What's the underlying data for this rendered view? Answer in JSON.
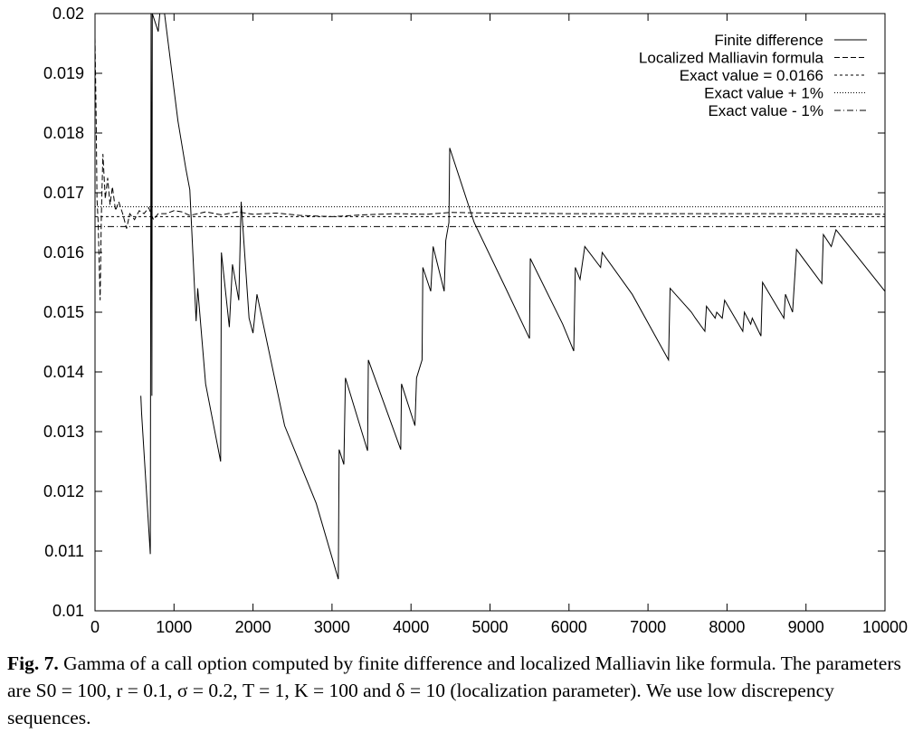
{
  "chart_data": {
    "type": "line",
    "xlim": [
      0,
      10000
    ],
    "ylim": [
      0.01,
      0.02
    ],
    "x_ticks": [
      "0",
      "1000",
      "2000",
      "3000",
      "4000",
      "5000",
      "6000",
      "7000",
      "8000",
      "9000",
      "10000"
    ],
    "y_ticks": [
      "0.01",
      "0.011",
      "0.012",
      "0.013",
      "0.014",
      "0.015",
      "0.016",
      "0.017",
      "0.018",
      "0.019",
      "0.02"
    ],
    "legend_position": "top-right",
    "series": [
      {
        "name": "Finite difference",
        "style": "solid",
        "points": [
          [
            580,
            0.0136
          ],
          [
            590,
            0.0133
          ],
          [
            700,
            0.01095
          ],
          [
            710,
            0.02
          ],
          [
            720,
            0.0136
          ],
          [
            725,
            0.02
          ],
          [
            800,
            0.0197
          ],
          [
            820,
            0.02
          ],
          [
            880,
            0.02
          ],
          [
            1050,
            0.0182
          ],
          [
            1150,
            0.0174
          ],
          [
            1200,
            0.01705
          ],
          [
            1280,
            0.01485
          ],
          [
            1300,
            0.0154
          ],
          [
            1400,
            0.0138
          ],
          [
            1590,
            0.0125
          ],
          [
            1600,
            0.016
          ],
          [
            1700,
            0.01475
          ],
          [
            1740,
            0.0158
          ],
          [
            1820,
            0.0152
          ],
          [
            1850,
            0.01685
          ],
          [
            1950,
            0.0149
          ],
          [
            2000,
            0.01465
          ],
          [
            2050,
            0.0153
          ],
          [
            2400,
            0.0131
          ],
          [
            2800,
            0.0118
          ],
          [
            3080,
            0.01053
          ],
          [
            3090,
            0.0127
          ],
          [
            3150,
            0.01245
          ],
          [
            3170,
            0.0139
          ],
          [
            3450,
            0.01268
          ],
          [
            3460,
            0.0142
          ],
          [
            3870,
            0.0127
          ],
          [
            3880,
            0.0138
          ],
          [
            4050,
            0.0131
          ],
          [
            4070,
            0.0139
          ],
          [
            4140,
            0.0142
          ],
          [
            4150,
            0.01575
          ],
          [
            4250,
            0.01535
          ],
          [
            4280,
            0.0161
          ],
          [
            4420,
            0.01535
          ],
          [
            4440,
            0.0162
          ],
          [
            4480,
            0.0165
          ],
          [
            4490,
            0.01775
          ],
          [
            4800,
            0.0165
          ],
          [
            5200,
            0.0154
          ],
          [
            5500,
            0.01456
          ],
          [
            5510,
            0.0159
          ],
          [
            5920,
            0.0148
          ],
          [
            6060,
            0.01435
          ],
          [
            6080,
            0.01575
          ],
          [
            6140,
            0.01555
          ],
          [
            6200,
            0.0161
          ],
          [
            6400,
            0.01575
          ],
          [
            6420,
            0.016
          ],
          [
            6800,
            0.0153
          ],
          [
            7260,
            0.0142
          ],
          [
            7280,
            0.0154
          ],
          [
            7550,
            0.015
          ],
          [
            7600,
            0.0149
          ],
          [
            7720,
            0.01468
          ],
          [
            7740,
            0.0151
          ],
          [
            7850,
            0.0149
          ],
          [
            7870,
            0.015
          ],
          [
            7940,
            0.0149
          ],
          [
            7970,
            0.0152
          ],
          [
            8200,
            0.01468
          ],
          [
            8220,
            0.015
          ],
          [
            8300,
            0.0148
          ],
          [
            8320,
            0.0149
          ],
          [
            8430,
            0.0146
          ],
          [
            8450,
            0.0155
          ],
          [
            8720,
            0.0149
          ],
          [
            8740,
            0.0153
          ],
          [
            8830,
            0.015
          ],
          [
            8880,
            0.01605
          ],
          [
            9200,
            0.01548
          ],
          [
            9220,
            0.0163
          ],
          [
            9320,
            0.0161
          ],
          [
            9380,
            0.01638
          ],
          [
            10000,
            0.01535
          ]
        ]
      },
      {
        "name": "Localized Malliavin formula",
        "style": "dashed",
        "points": [
          [
            0,
            0.0196
          ],
          [
            15,
            0.0182
          ],
          [
            25,
            0.0169
          ],
          [
            40,
            0.0165
          ],
          [
            55,
            0.0157
          ],
          [
            65,
            0.0152
          ],
          [
            80,
            0.0166
          ],
          [
            100,
            0.01765
          ],
          [
            130,
            0.0169
          ],
          [
            160,
            0.01725
          ],
          [
            190,
            0.0168
          ],
          [
            220,
            0.0171
          ],
          [
            260,
            0.0167
          ],
          [
            300,
            0.01685
          ],
          [
            350,
            0.01665
          ],
          [
            400,
            0.0164
          ],
          [
            440,
            0.01665
          ],
          [
            500,
            0.01655
          ],
          [
            560,
            0.0167
          ],
          [
            620,
            0.01665
          ],
          [
            680,
            0.01675
          ],
          [
            740,
            0.01655
          ],
          [
            800,
            0.01665
          ],
          [
            900,
            0.01665
          ],
          [
            1000,
            0.0167
          ],
          [
            1100,
            0.01668
          ],
          [
            1200,
            0.01662
          ],
          [
            1400,
            0.01668
          ],
          [
            1600,
            0.01663
          ],
          [
            1800,
            0.01668
          ],
          [
            2000,
            0.01664
          ],
          [
            2300,
            0.01666
          ],
          [
            2600,
            0.01662
          ],
          [
            3000,
            0.0166
          ],
          [
            3400,
            0.01663
          ],
          [
            3800,
            0.01665
          ],
          [
            4200,
            0.01664
          ],
          [
            4500,
            0.01667
          ],
          [
            5000,
            0.01666
          ],
          [
            6000,
            0.01665
          ],
          [
            7000,
            0.01665
          ],
          [
            8000,
            0.01665
          ],
          [
            9000,
            0.01665
          ],
          [
            10000,
            0.01664
          ]
        ]
      },
      {
        "name": "Exact value = 0.0166",
        "style": "short-dashed",
        "value": 0.0166
      },
      {
        "name": "Exact value + 1%",
        "style": "dotted",
        "value": 0.016766
      },
      {
        "name": "Exact value - 1%",
        "style": "dash-dot",
        "value": 0.016434
      }
    ]
  },
  "caption": {
    "label": "Fig. 7.",
    "text": " Gamma of a call option computed by finite difference and localized Malliavin like formula. The parameters are S0 = 100, r = 0.1, σ = 0.2, T = 1, K = 100 and δ = 10 (localization parameter). We use low discrepency sequences."
  }
}
